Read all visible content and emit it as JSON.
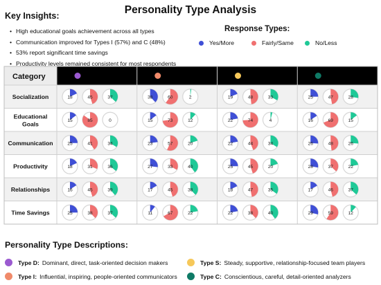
{
  "title": "Personality Type Analysis",
  "insights": {
    "heading": "Key Insights:",
    "items": [
      "High educational goals achievement across all types",
      "Communication improved for Types I (57%) and C (48%)",
      "53% report significant time savings",
      "Productivity levels remained consistent for most respondents"
    ]
  },
  "legend": {
    "heading": "Response Types:",
    "items": [
      {
        "label": "Yes/More",
        "color": "#3f4fd6"
      },
      {
        "label": "Fairly/Same",
        "color": "#f07070"
      },
      {
        "label": "No/Less",
        "color": "#1fc997"
      }
    ]
  },
  "table": {
    "category_header": "Category",
    "types": [
      {
        "color": "#9b5ad0"
      },
      {
        "color": "#f08a6a"
      },
      {
        "color": "#f6c85a"
      },
      {
        "color": "#0f7a66"
      }
    ]
  },
  "chart_data": {
    "type": "table",
    "title": "Personality Type Analysis",
    "series": [
      {
        "name": "Yes/More",
        "color": "#3f4fd6"
      },
      {
        "name": "Fairly/Same",
        "color": "#f07070"
      },
      {
        "name": "No/Less",
        "color": "#1fc997"
      }
    ],
    "rows": [
      {
        "category": "Socialization",
        "values": [
          [
            18,
            45,
            37
          ],
          [
            38,
            60,
            2
          ],
          [
            19,
            48,
            33
          ],
          [
            25,
            47,
            28
          ]
        ]
      },
      {
        "category": "Educational Goals",
        "values": [
          [
            15,
            85,
            0
          ],
          [
            15,
            73,
            12
          ],
          [
            22,
            74,
            4
          ],
          [
            16,
            69,
            15
          ]
        ]
      },
      {
        "category": "Communication",
        "values": [
          [
            25,
            41,
            34
          ],
          [
            23,
            57,
            20
          ],
          [
            22,
            44,
            34
          ],
          [
            26,
            48,
            26
          ]
        ]
      },
      {
        "category": "Productivity",
        "values": [
          [
            18,
            31,
            36
          ],
          [
            27,
            33,
            40
          ],
          [
            25,
            45,
            20
          ],
          [
            28,
            37,
            22
          ]
        ]
      },
      {
        "category": "Relationships",
        "values": [
          [
            16,
            45,
            39
          ],
          [
            17,
            45,
            38
          ],
          [
            18,
            47,
            35
          ],
          [
            17,
            46,
            37
          ]
        ]
      },
      {
        "category": "Time Savings",
        "values": [
          [
            25,
            38,
            37
          ],
          [
            11,
            67,
            22
          ],
          [
            22,
            38,
            40
          ],
          [
            29,
            59,
            12
          ]
        ]
      }
    ]
  },
  "descriptions": {
    "heading": "Personality Type Descriptions:",
    "items": [
      {
        "name": "Type D:",
        "text": "Dominant, direct, task-oriented decision makers",
        "color": "#9b5ad0"
      },
      {
        "name": "Type I:",
        "text": "Influential, inspiring, people-oriented communicators",
        "color": "#f08a6a"
      },
      {
        "name": "Type S:",
        "text": "Steady, supportive, relationship-focused team players",
        "color": "#f6c85a"
      },
      {
        "name": "Type C:",
        "text": "Conscientious, careful, detail-oriented analyzers",
        "color": "#0f7a66"
      }
    ]
  }
}
